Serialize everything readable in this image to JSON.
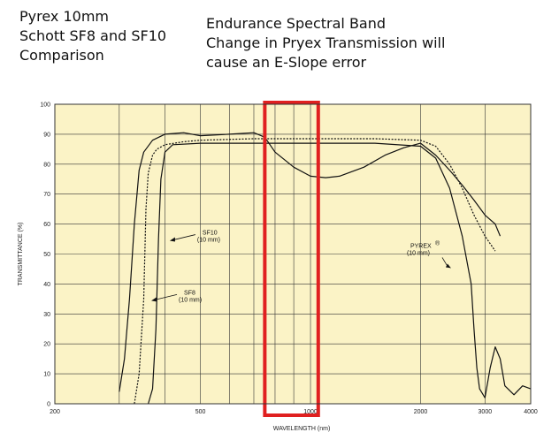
{
  "title_left": [
    "Pyrex 10mm",
    "Schott SF8 and SF10",
    "Comparison"
  ],
  "title_right": [
    "Endurance Spectral Band",
    "Change in Pryex Transmission will",
    "cause an E-Slope error"
  ],
  "colors": {
    "plot_background": "#fbf3c6",
    "grid": "#333333",
    "curve": "#111111",
    "highlight": "#e02020"
  },
  "chart_data": {
    "type": "line",
    "xlabel": "WAVELENGTH (nm)",
    "ylabel": "TRANSMITTANCE (%)",
    "x_scale": "log",
    "xlim": [
      200,
      4000
    ],
    "ylim": [
      0,
      100
    ],
    "x_ticks": [
      200,
      300,
      400,
      500,
      600,
      700,
      800,
      900,
      1000,
      2000,
      3000,
      4000
    ],
    "x_tick_labels": [
      "200",
      "",
      "",
      "500",
      "",
      "",
      "",
      "",
      "1000",
      "2000",
      "3000",
      "4000"
    ],
    "y_ticks": [
      0,
      10,
      20,
      30,
      40,
      50,
      60,
      70,
      80,
      90,
      100
    ],
    "grid": true,
    "series": [
      {
        "name": "SF10",
        "sublabel": "(10 mm)",
        "style": "solid",
        "x": [
          360,
          370,
          378,
          384,
          390,
          400,
          420,
          500,
          700,
          1000,
          1500,
          2000,
          2200,
          2400,
          2600,
          2750,
          2800,
          2850,
          2900,
          3000,
          3100,
          3200,
          3300,
          3400,
          3600,
          3800,
          4000
        ],
        "y": [
          0,
          5,
          25,
          55,
          75,
          84,
          86.5,
          87,
          87,
          87,
          87,
          86,
          82,
          72,
          56,
          40,
          25,
          12,
          5,
          2,
          12,
          19,
          15,
          6,
          3,
          6,
          5
        ],
        "annotation": {
          "x": 410,
          "y": 55
        }
      },
      {
        "name": "SF8",
        "sublabel": "(10 mm)",
        "style": "dotted",
        "x": [
          330,
          340,
          350,
          355,
          360,
          370,
          380,
          400,
          450,
          500,
          700,
          1000,
          1500,
          2000,
          2200,
          2400,
          2600,
          2800,
          3000,
          3200
        ],
        "y": [
          0,
          10,
          35,
          65,
          77,
          83,
          85,
          86.5,
          87.5,
          88,
          88.5,
          88.5,
          88.5,
          88,
          86,
          80,
          72,
          63,
          56,
          51
        ],
        "annotation": {
          "x": 365,
          "y": 35
        }
      },
      {
        "name": "PYREX",
        "superscript": "®",
        "sublabel": "(10 mm)",
        "style": "solid",
        "x": [
          300,
          310,
          320,
          330,
          340,
          350,
          370,
          400,
          450,
          500,
          600,
          700,
          750,
          800,
          900,
          1000,
          1100,
          1200,
          1400,
          1600,
          1800,
          2000,
          2200,
          2400,
          2600,
          2800,
          3000,
          3200,
          3300
        ],
        "y": [
          4,
          15,
          35,
          60,
          78,
          84,
          88,
          90,
          90.5,
          89.5,
          90,
          90.5,
          89,
          84,
          79,
          76,
          75.5,
          76,
          79,
          83,
          85.5,
          87,
          83,
          78,
          73,
          68,
          63,
          60,
          56
        ],
        "annotation": {
          "x": 2450,
          "y": 45
        }
      }
    ],
    "highlight_band": {
      "x": [
        750,
        1050
      ],
      "label": "Endurance Spectral Band"
    }
  }
}
